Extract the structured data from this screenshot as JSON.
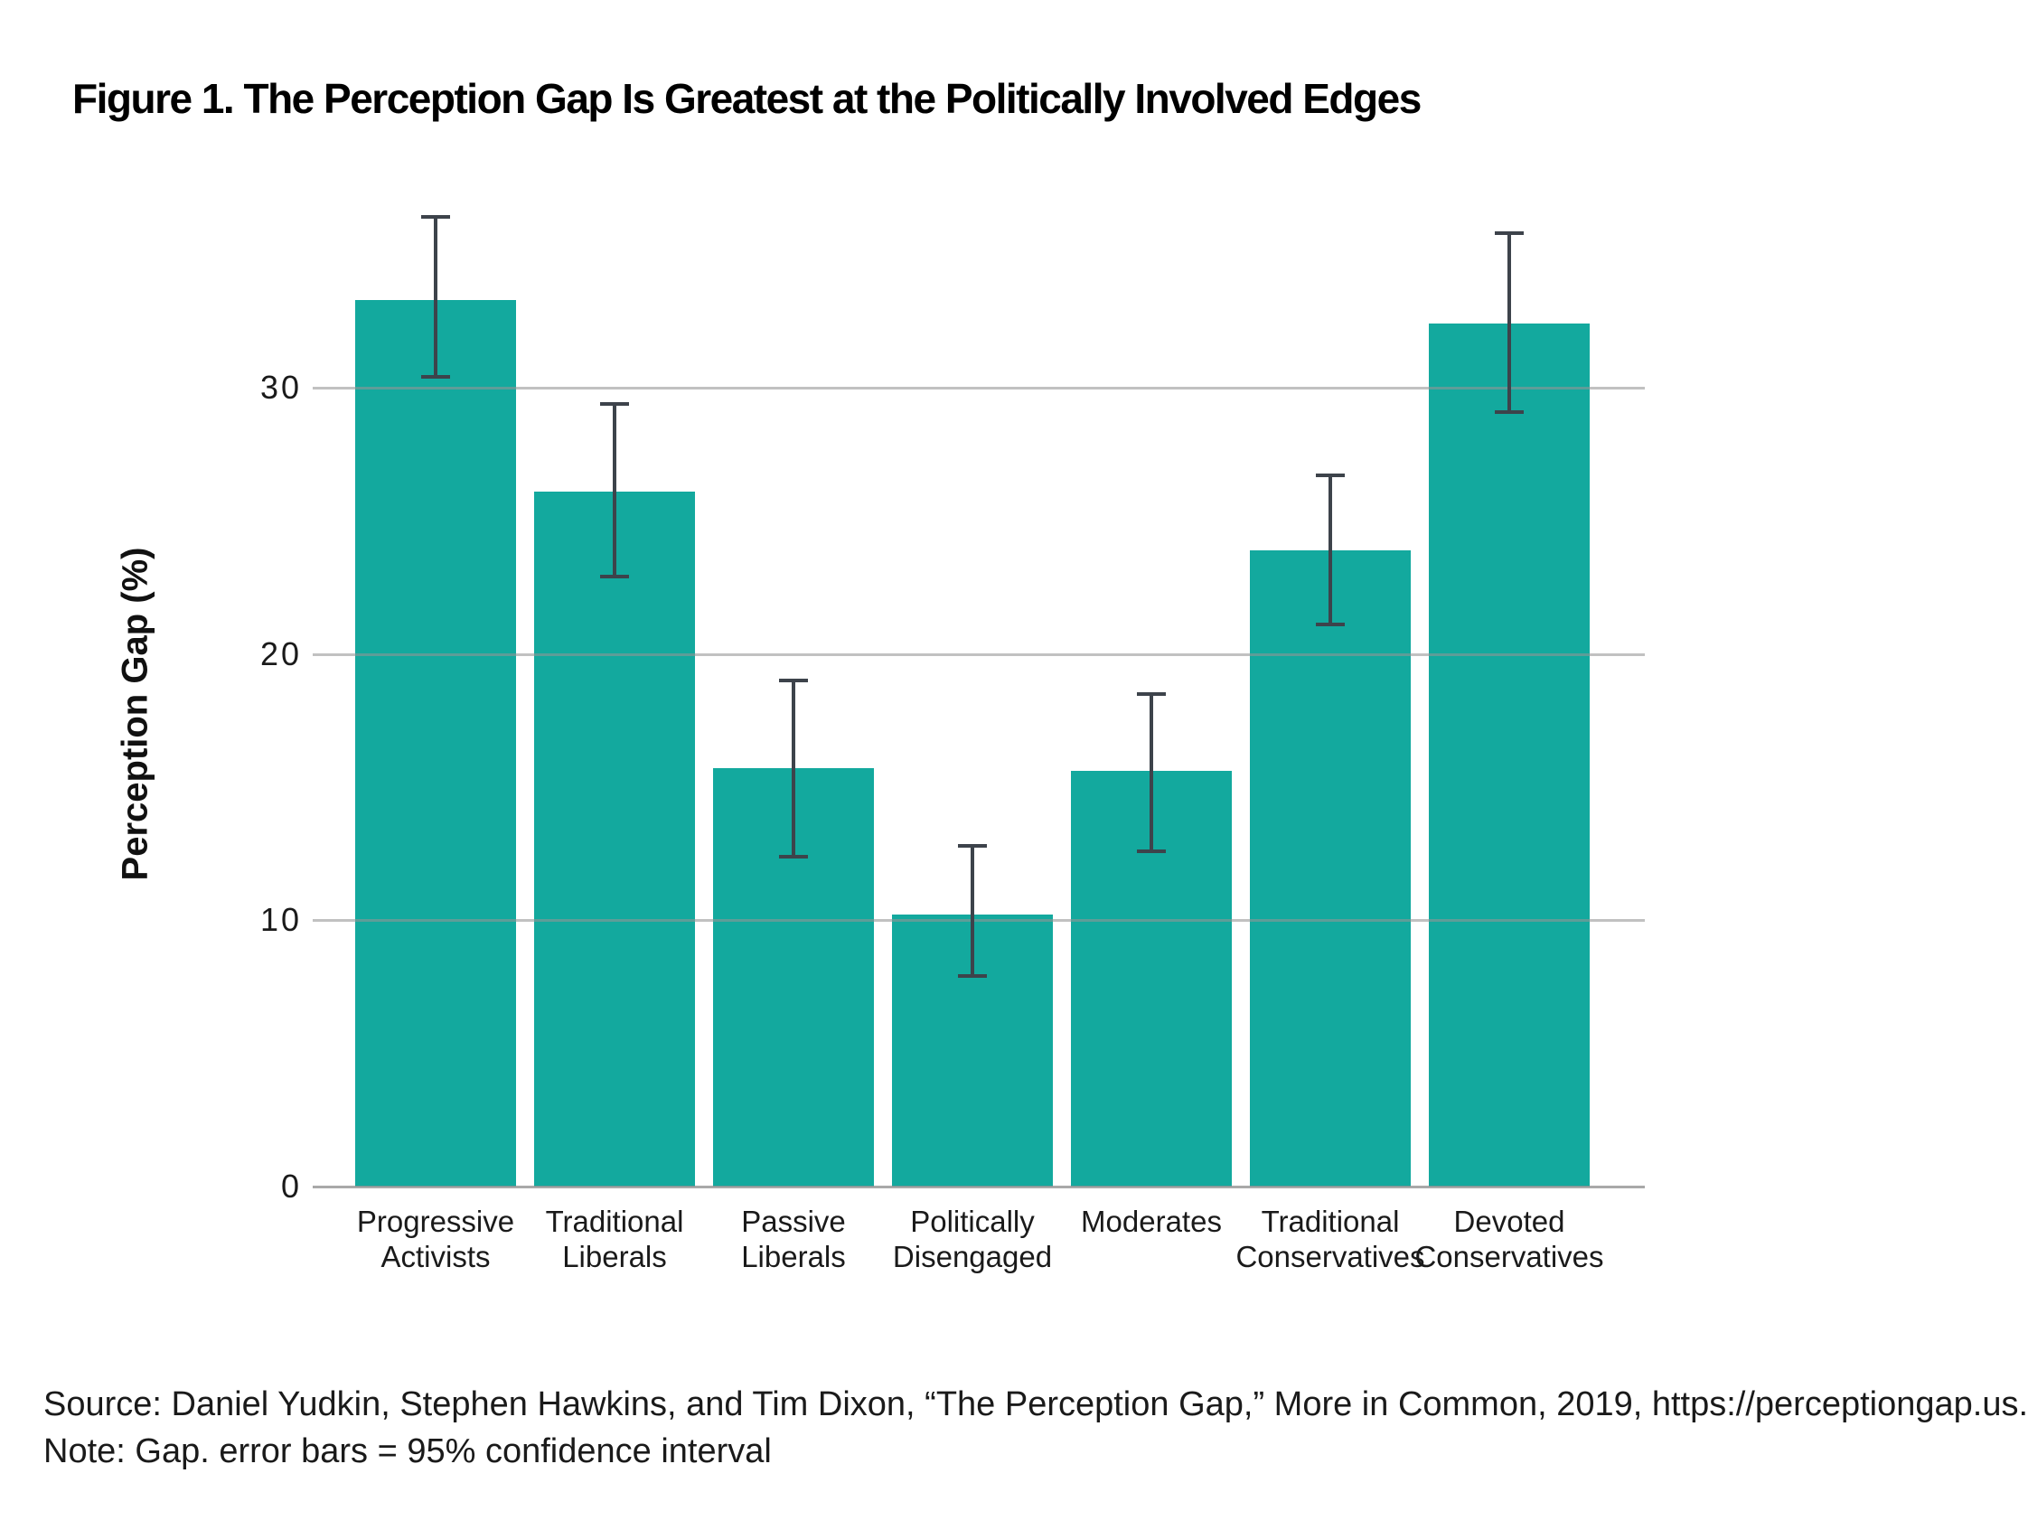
{
  "figure": {
    "title": "Figure 1. The Perception Gap Is Greatest at the Politically Involved Edges",
    "source": "Source: Daniel Yudkin, Stephen Hawkins, and Tim Dixon, “The Perception Gap,” More in Common, 2019, https://perceptiongap.us.",
    "note": "Note: Gap. error bars = 95% confidence interval"
  },
  "chart_data": {
    "type": "bar",
    "title": "Figure 1. The Perception Gap Is Greatest at the Politically Involved Edges",
    "xlabel": "",
    "ylabel": "Perception Gap (%)",
    "categories": [
      "Progressive Activists",
      "Traditional Liberals",
      "Passive Liberals",
      "Politically Disengaged",
      "Moderates",
      "Traditional Conservatives",
      "Devoted Conservatives"
    ],
    "values": [
      33.3,
      26.1,
      15.7,
      10.2,
      15.6,
      23.9,
      32.4
    ],
    "error_low": [
      30.4,
      22.9,
      12.4,
      7.9,
      12.6,
      21.1,
      29.1
    ],
    "error_high": [
      36.4,
      29.4,
      19.0,
      12.8,
      18.5,
      26.7,
      35.8
    ],
    "error_note": "95% confidence interval",
    "yticks": [
      0,
      10,
      20,
      30
    ],
    "ylim": [
      0,
      37.5
    ],
    "grid": true,
    "grid_on_top_of_bars": true,
    "legend": false,
    "colors": {
      "bar": "#13A99E",
      "error_bar": "#3D434B",
      "gridline": "#BDBDBD",
      "baseline": "#ACACAC",
      "text": "#1A1A1A"
    }
  }
}
